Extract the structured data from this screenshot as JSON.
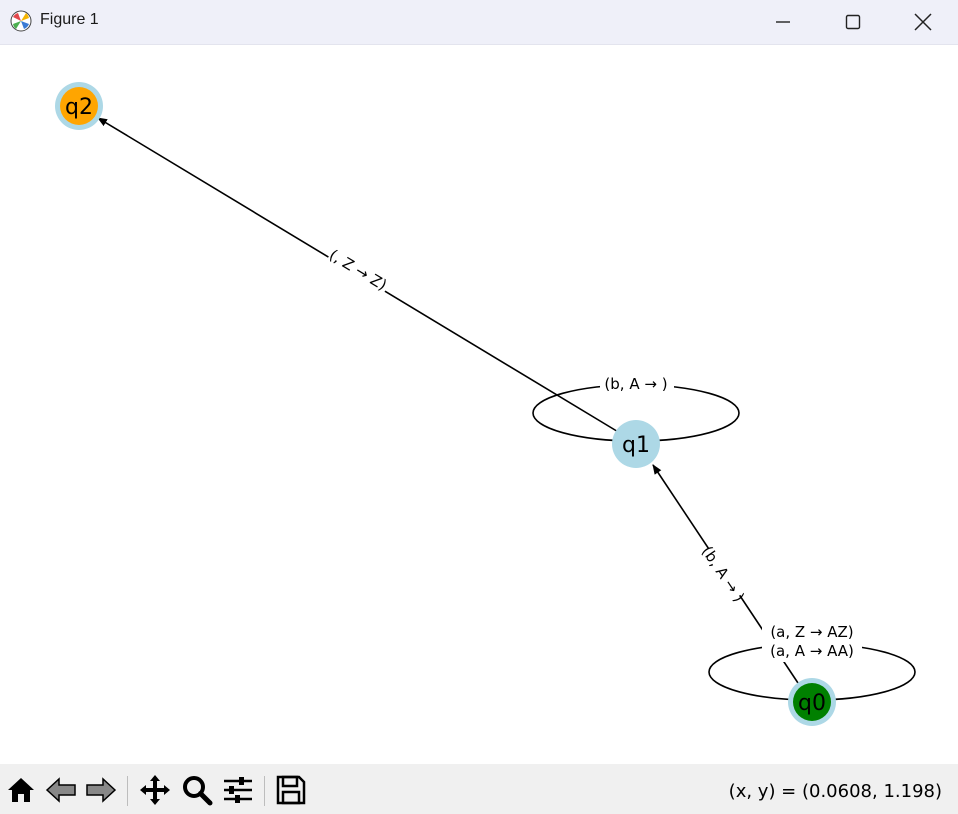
{
  "window": {
    "title": "Figure 1",
    "controls": [
      "minimize",
      "maximize",
      "close"
    ]
  },
  "graph": {
    "nodes": [
      {
        "id": "q0",
        "label": "q0",
        "fill": "#008000",
        "ring": "#add8e6"
      },
      {
        "id": "q1",
        "label": "q1",
        "fill": "#add8e6",
        "ring": "#add8e6"
      },
      {
        "id": "q2",
        "label": "q2",
        "fill": "#ffa500",
        "ring": "#add8e6"
      }
    ],
    "edges": [
      {
        "from": "q1",
        "to": "q2",
        "label": "(, Z → Z)"
      },
      {
        "from": "q0",
        "to": "q1",
        "label": "(b, A → )"
      },
      {
        "from": "q1",
        "to": "q1",
        "label": "(b, A → )"
      },
      {
        "from": "q0",
        "to": "q0",
        "label_lines": [
          "(a, Z → AZ)",
          "(a, A → AA)"
        ]
      }
    ]
  },
  "toolbar": {
    "tools": [
      "home-icon",
      "back-icon",
      "forward-icon",
      "pan-icon",
      "zoom-icon",
      "configure-icon",
      "save-icon"
    ],
    "coords": "(x, y) = (0.0608, 1.198)"
  },
  "colors": {
    "titlebar_bg": "#eff0f9",
    "toolbar_bg": "#f0f0f0",
    "edge": "#000000"
  }
}
